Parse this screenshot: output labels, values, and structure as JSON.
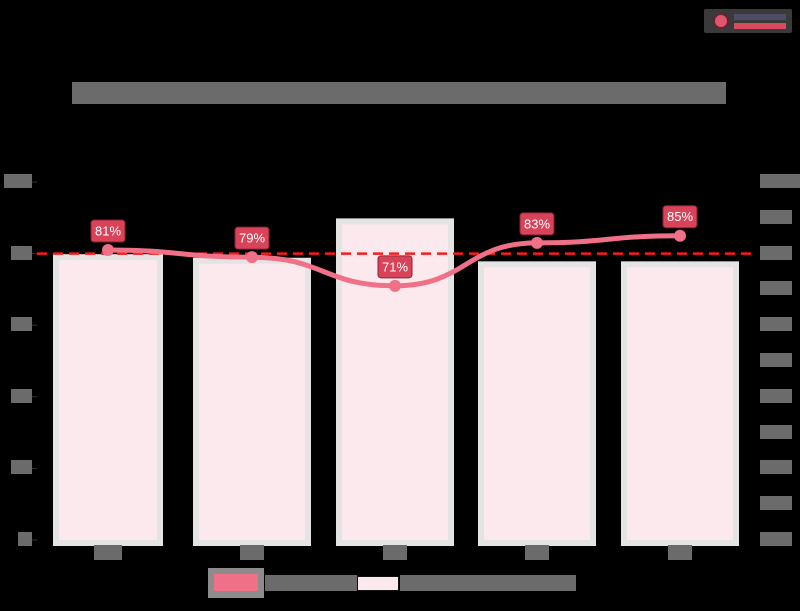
{
  "header": {
    "title": "[redacted chart title]",
    "logo": "brand-logo"
  },
  "legend": {
    "items": [
      {
        "label": "[redacted line series]",
        "color": "#f07088",
        "type": "line"
      },
      {
        "label": "[redacted bar series]",
        "color": "#fbe9ee",
        "type": "bar"
      }
    ]
  },
  "colors": {
    "line": "#f07088",
    "bar_fill": "#fbe9ee",
    "bar_border": "#e4e4e4",
    "target_line": "#ff1a1a",
    "data_label_bg": "#d8435a",
    "background": "#000000"
  },
  "chart_data": {
    "type": "bar",
    "title": "[redacted]",
    "categories": [
      "[cat 1]",
      "[cat 2]",
      "[cat 3]",
      "[cat 4]",
      "[cat 5]"
    ],
    "series": [
      {
        "name": "[redacted bar series]",
        "type": "bar",
        "axis": "right",
        "values": [
          79,
          78,
          89,
          77,
          77
        ]
      },
      {
        "name": "[redacted line series]",
        "type": "line",
        "axis": "left",
        "values": [
          81,
          79,
          71,
          83,
          85
        ],
        "labels": [
          "81%",
          "79%",
          "71%",
          "83%",
          "85%"
        ]
      }
    ],
    "target_line": {
      "value": 80,
      "axis": "left",
      "style": "dashed",
      "color": "#ff1a1a"
    },
    "yaxis_left": {
      "ticks": [
        "0%",
        "20%",
        "40%",
        "60%",
        "80%",
        "100%"
      ],
      "ylim": [
        0,
        100
      ]
    },
    "yaxis_right": {
      "ticks": 11,
      "ylim": [
        0,
        100
      ],
      "note": "tick labels redacted"
    },
    "xlabel": "",
    "ylabel": "",
    "grid": false,
    "legend_position": "bottom"
  },
  "data_labels": [
    "81%",
    "79%",
    "71%",
    "83%",
    "85%"
  ]
}
